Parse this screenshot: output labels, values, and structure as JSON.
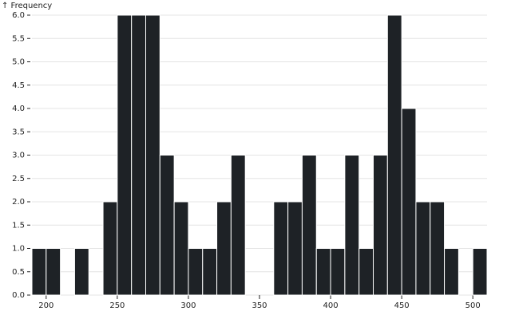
{
  "chart_data": {
    "type": "histogram",
    "y_label": "↑ Frequency",
    "bins": [
      190,
      200,
      210,
      220,
      230,
      240,
      250,
      260,
      270,
      280,
      290,
      300,
      310,
      320,
      330,
      340,
      350,
      360,
      370,
      380,
      390,
      400,
      410,
      420,
      430,
      440,
      450,
      460,
      470,
      480,
      490,
      500,
      510
    ],
    "values": [
      1,
      1,
      0,
      1,
      0,
      2,
      6,
      6,
      6,
      3,
      2,
      1,
      1,
      2,
      3,
      0,
      0,
      2,
      2,
      3,
      1,
      1,
      3,
      1,
      3,
      6,
      4,
      2,
      2,
      1,
      0,
      1
    ],
    "color": "#1e2226",
    "xlim": [
      190,
      510
    ],
    "xticks": [
      200,
      250,
      300,
      350,
      400,
      450,
      500
    ],
    "ylim": [
      0,
      6
    ],
    "yticks": [
      {
        "value": 0,
        "label": "0.0"
      },
      {
        "value": 0.5,
        "label": "0.5"
      },
      {
        "value": 1,
        "label": "1.0"
      },
      {
        "value": 1.5,
        "label": "1.5"
      },
      {
        "value": 2,
        "label": "2.0"
      },
      {
        "value": 2.5,
        "label": "2.5"
      },
      {
        "value": 3,
        "label": "3.0"
      },
      {
        "value": 3.5,
        "label": "3.5"
      },
      {
        "value": 4,
        "label": "4.0"
      },
      {
        "value": 4.5,
        "label": "4.5"
      },
      {
        "value": 5,
        "label": "5.0"
      },
      {
        "value": 5.5,
        "label": "5.5"
      },
      {
        "value": 6,
        "label": "6.0"
      }
    ],
    "grid": true
  }
}
